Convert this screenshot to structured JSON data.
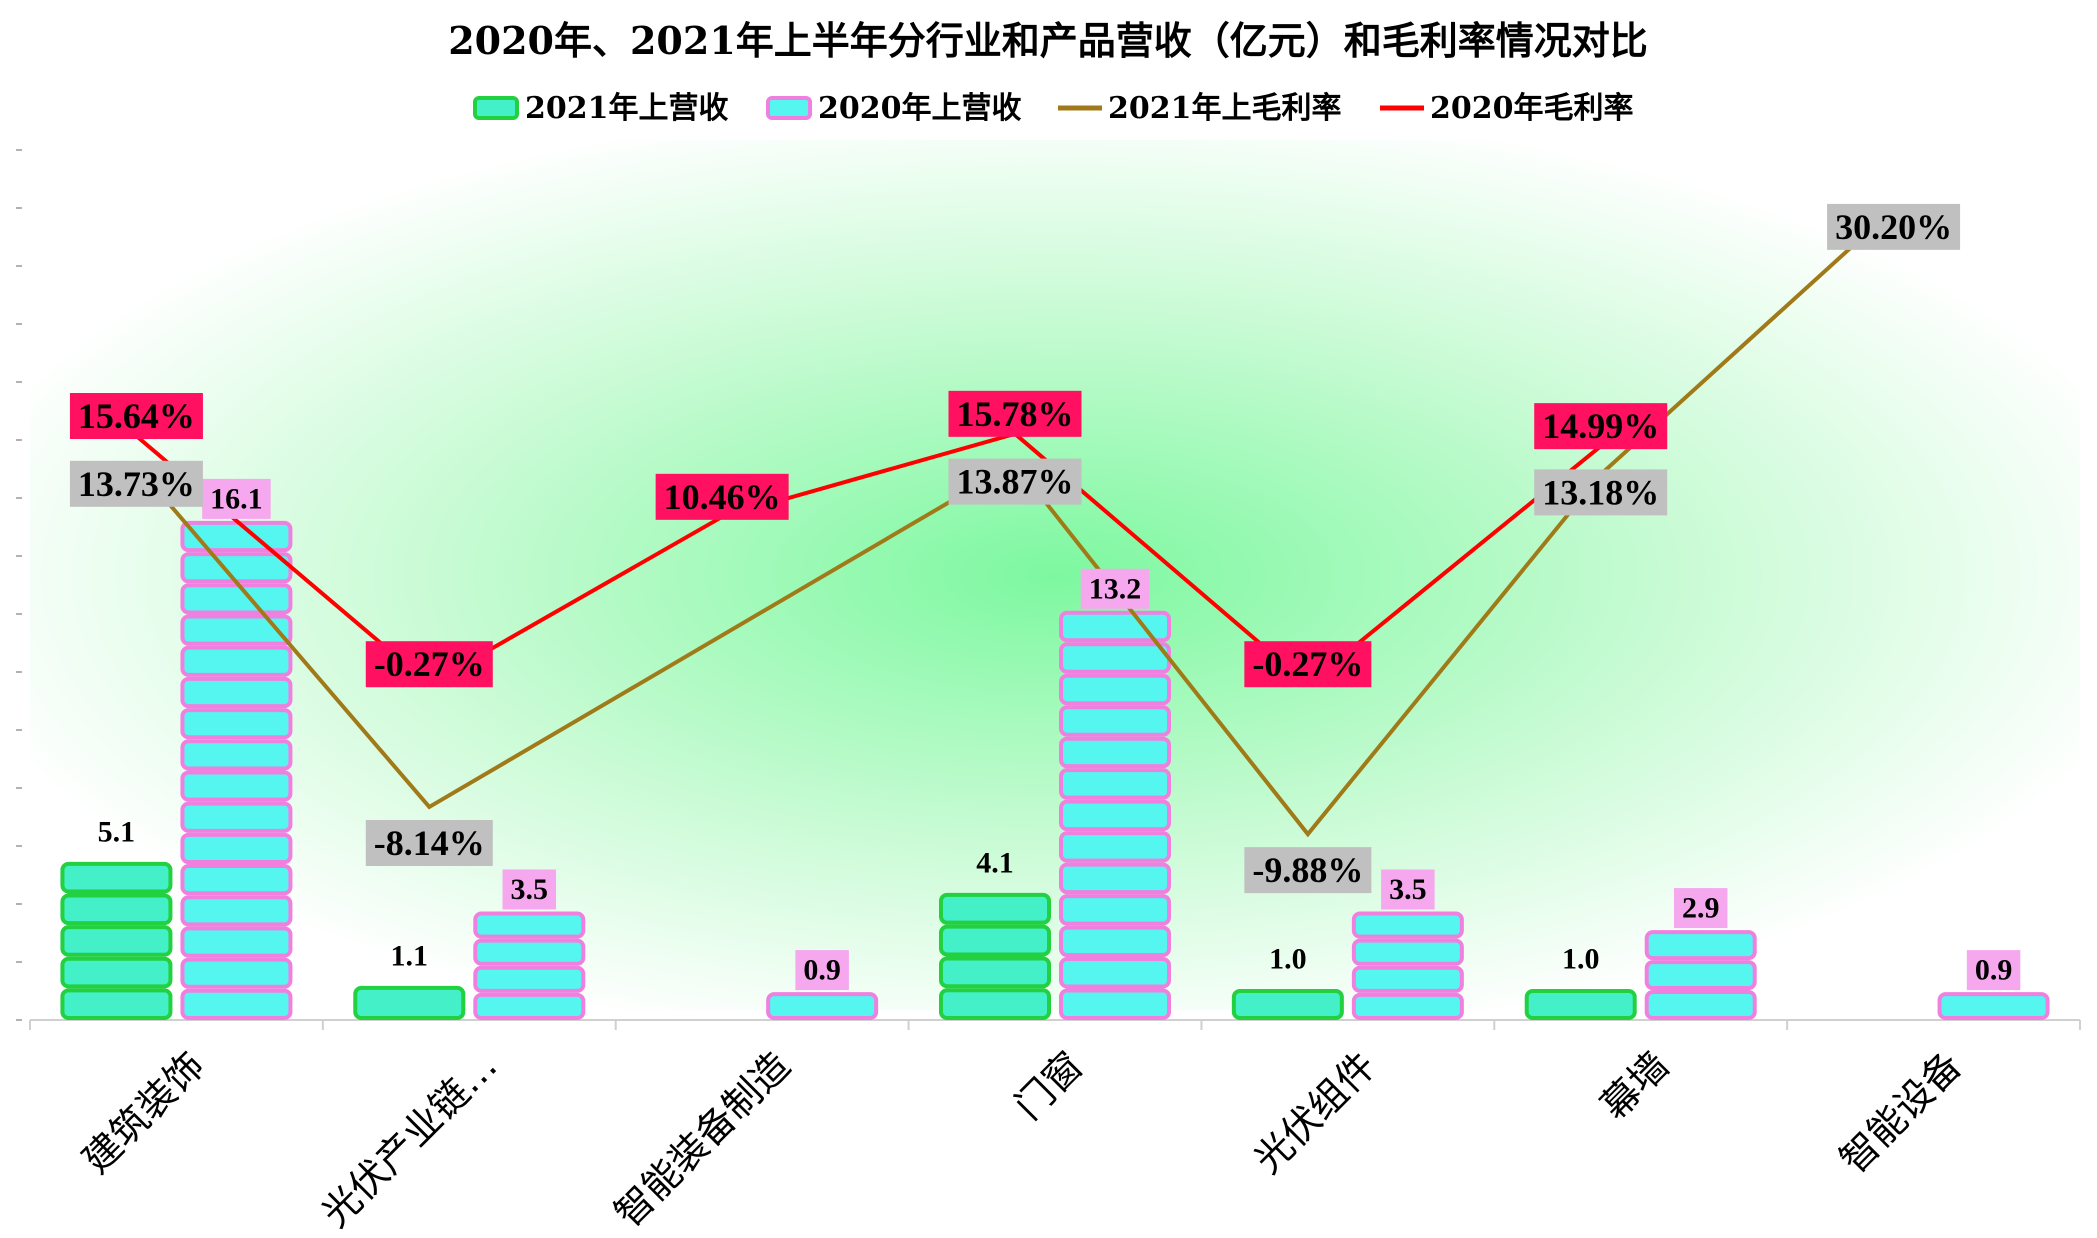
{
  "chart_data": {
    "type": "bar",
    "title": "2020年、2021年上半年分行业和产品营收（亿元）和毛利率情况对比",
    "categories": [
      "建筑装饰",
      "光伏产业链…",
      "智能装备制造",
      "门窗",
      "光伏组件",
      "幕墙",
      "智能设备"
    ],
    "series": [
      {
        "name": "2021年上营收",
        "kind": "bar",
        "values": [
          5.1,
          1.1,
          null,
          4.1,
          1.0,
          1.0,
          null
        ],
        "labels": [
          "5.1",
          "1.1",
          "",
          "4.1",
          "1.0",
          "1.0",
          ""
        ],
        "color": "#43f0c8",
        "edge_color": "#22d040"
      },
      {
        "name": "2020年上营收",
        "kind": "bar",
        "values": [
          16.1,
          3.5,
          0.9,
          13.2,
          3.5,
          2.9,
          0.9
        ],
        "labels": [
          "16.1",
          "3.5",
          "0.9",
          "13.2",
          "3.5",
          "2.9",
          "0.9"
        ],
        "color": "#55f5f0",
        "edge_color": "#f080e0",
        "label_bg": "#f5a8ee"
      },
      {
        "name": "2021年上毛利率",
        "kind": "line",
        "values": [
          13.73,
          -8.14,
          null,
          13.87,
          -9.88,
          13.18,
          30.2
        ],
        "labels": [
          "13.73%",
          "-8.14%",
          "",
          "13.87%",
          "-9.88%",
          "13.18%",
          "30.20%"
        ],
        "color": "#a07a18",
        "label_bg": "#c0c0c0"
      },
      {
        "name": "2020年毛利率",
        "kind": "line",
        "values": [
          15.64,
          -0.27,
          10.46,
          15.78,
          -0.27,
          14.99,
          null
        ],
        "labels": [
          "15.64%",
          "-0.27%",
          "10.46%",
          "15.78%",
          "-0.27%",
          "14.99%",
          ""
        ],
        "color": "#ff0000",
        "label_bg": "#ff1060"
      }
    ],
    "legend_position": "top",
    "grid": false
  }
}
